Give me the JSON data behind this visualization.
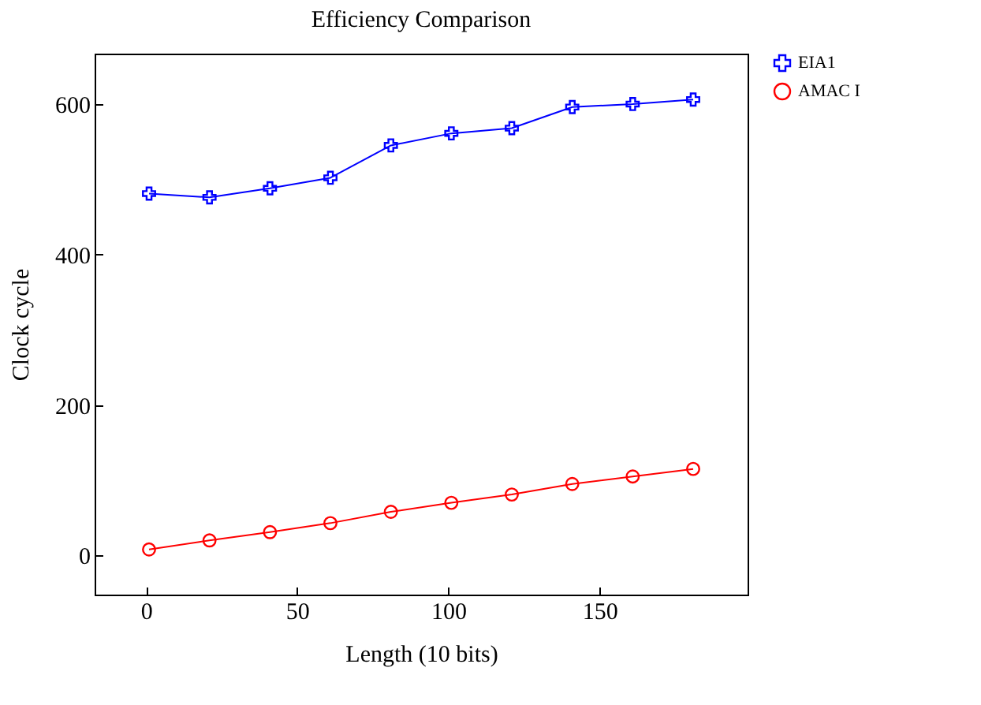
{
  "chart_data": {
    "type": "line",
    "title": "Efficiency Comparison",
    "xlabel": "Length (10 bits)",
    "ylabel": "Clock cycle",
    "x": [
      1,
      21,
      41,
      61,
      81,
      101,
      121,
      141,
      161,
      181
    ],
    "series": [
      {
        "name": "EIA1",
        "color": "#0000ff",
        "marker": "cross",
        "values": [
          481,
          476,
          488,
          502,
          545,
          561,
          568,
          596,
          600,
          606
        ]
      },
      {
        "name": "AMAC I",
        "color": "#ff0000",
        "marker": "circle",
        "values": [
          8,
          20,
          31,
          43,
          58,
          70,
          81,
          95,
          105,
          115
        ]
      }
    ],
    "xlim": [
      -17,
      199
    ],
    "ylim": [
      -52,
      667
    ],
    "xticks": [
      0,
      50,
      100,
      150
    ],
    "yticks": [
      0,
      200,
      400,
      600
    ],
    "grid": false,
    "legend": "top right",
    "line_style": "solid"
  }
}
